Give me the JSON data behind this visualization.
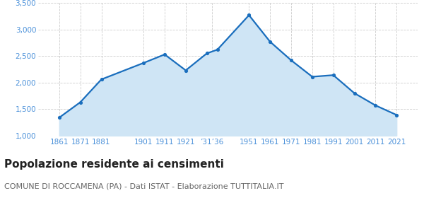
{
  "years": [
    1861,
    1871,
    1881,
    1901,
    1911,
    1921,
    1931,
    1936,
    1951,
    1961,
    1971,
    1981,
    1991,
    2001,
    2011,
    2021
  ],
  "population": [
    1340,
    1630,
    2060,
    2370,
    2530,
    2230,
    2550,
    2620,
    3270,
    2770,
    2420,
    2110,
    2140,
    1800,
    1570,
    1390
  ],
  "tick_positions": [
    1861,
    1871,
    1881,
    1901,
    1911,
    1921,
    1933.5,
    1951,
    1961,
    1971,
    1981,
    1991,
    2001,
    2011,
    2021
  ],
  "tick_labels": [
    "1861",
    "1871",
    "1881",
    "1901",
    "1911",
    "1921",
    "’31’36",
    "1951",
    "1961",
    "1971",
    "1981",
    "1991",
    "2001",
    "2011",
    "2021"
  ],
  "line_color": "#1a6ebd",
  "fill_color": "#cfe5f5",
  "marker_color": "#1a6ebd",
  "background_color": "#ffffff",
  "grid_color": "#cccccc",
  "title": "Popolazione residente ai censimenti",
  "subtitle": "COMUNE DI ROCCAMENA (PA) - Dati ISTAT - Elaborazione TUTTITALIA.IT",
  "ylim": [
    1000,
    3500
  ],
  "yticks": [
    1000,
    1500,
    2000,
    2500,
    3000,
    3500
  ],
  "title_fontsize": 11,
  "subtitle_fontsize": 8,
  "axis_label_color": "#4a90d9",
  "axis_label_fontsize": 7.5,
  "xlim": [
    1851,
    2031
  ]
}
